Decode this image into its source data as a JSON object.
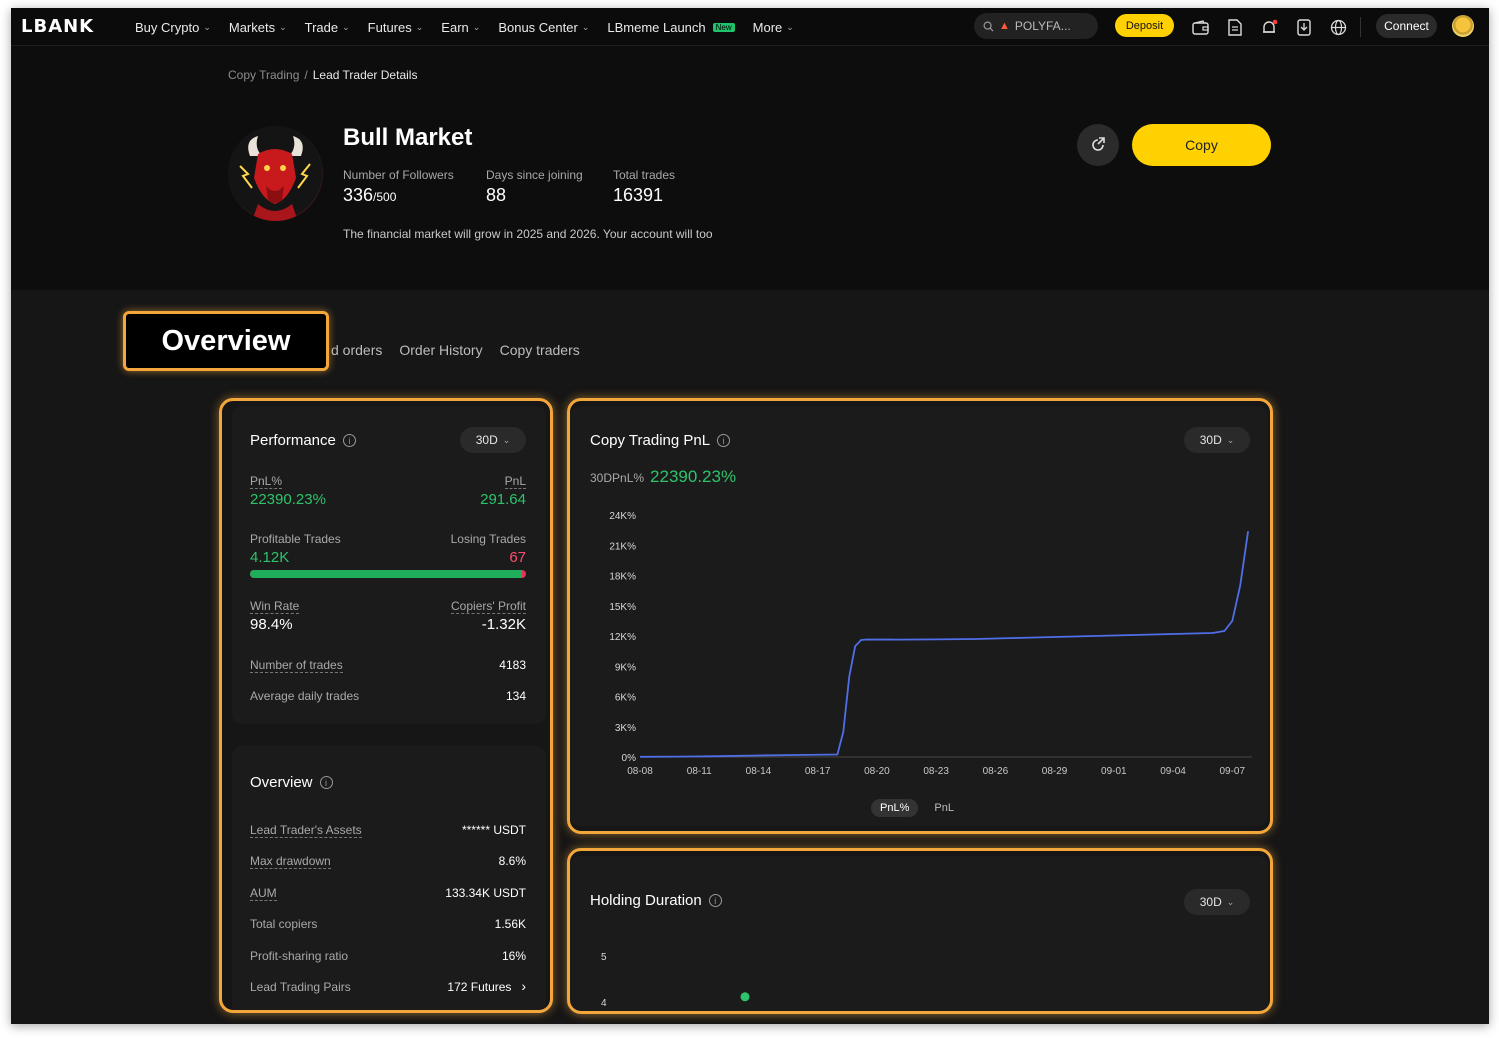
{
  "nav": {
    "logo": "LBANK",
    "items": [
      {
        "label": "Buy Crypto",
        "chevron": true,
        "badge": ""
      },
      {
        "label": "Markets",
        "chevron": true,
        "badge": ""
      },
      {
        "label": "Trade",
        "chevron": true,
        "badge": ""
      },
      {
        "label": "Futures",
        "chevron": true,
        "badge": ""
      },
      {
        "label": "Earn",
        "chevron": true,
        "badge": ""
      },
      {
        "label": "Bonus Center",
        "chevron": true,
        "badge": ""
      },
      {
        "label": "LBmeme Launch",
        "chevron": false,
        "badge": "New"
      },
      {
        "label": "More",
        "chevron": true,
        "badge": ""
      }
    ],
    "search_text": "POLYFA...",
    "deposit_label": "Deposit",
    "connect_label": "Connect",
    "icons": [
      "wallet-icon",
      "document-icon",
      "bell-icon",
      "download-icon",
      "globe-icon"
    ]
  },
  "breadcrumb": {
    "parent": "Copy Trading",
    "separator": "/",
    "current": "Lead Trader Details"
  },
  "trader": {
    "name": "Bull Market",
    "followers_label": "Number of Followers",
    "followers": "336",
    "followers_max": "/500",
    "days_label": "Days since joining",
    "days": "88",
    "trades_label": "Total trades",
    "trades": "16391",
    "bio": "The financial market will grow in 2025 and 2026. Your account will too"
  },
  "actions": {
    "copy_label": "Copy"
  },
  "tabs": {
    "partial_tab": "d orders",
    "order_history": "Order History",
    "copy_traders": "Copy traders"
  },
  "callout": {
    "label": "Overview"
  },
  "performance": {
    "title": "Performance",
    "period": "30D",
    "pnl_pct_label": "PnL%",
    "pnl_pct": "22390.23%",
    "pnl_label": "PnL",
    "pnl": "291.64",
    "profitable_label": "Profitable Trades",
    "profitable": "4.12K",
    "losing_label": "Losing Trades",
    "losing": "67",
    "win_ratio": 0.984,
    "win_rate_label": "Win Rate",
    "win_rate": "98.4%",
    "copiers_profit_label": "Copiers' Profit",
    "copiers_profit": "-1.32K",
    "num_trades_label": "Number of trades",
    "num_trades": "4183",
    "avg_daily_label": "Average daily trades",
    "avg_daily": "134"
  },
  "overview": {
    "title": "Overview",
    "rows": [
      {
        "label": "Lead Trader's Assets",
        "value": "****** USDT",
        "dotted": true
      },
      {
        "label": "Max drawdown",
        "value": "8.6%",
        "dotted": true
      },
      {
        "label": "AUM",
        "value": "133.34K USDT",
        "dotted": true
      },
      {
        "label": "Total copiers",
        "value": "1.56K",
        "dotted": false
      },
      {
        "label": "Profit-sharing ratio",
        "value": "16%",
        "dotted": false
      },
      {
        "label": "Lead Trading Pairs",
        "value": "172 Futures",
        "dotted": false
      }
    ]
  },
  "pnl_chart": {
    "title": "Copy Trading PnL",
    "period": "30D",
    "summary_label": "30DPnL%",
    "summary_value": "22390.23%",
    "toggle_active": "PnL%",
    "toggle_inactive": "PnL",
    "line_color": "#4f6fe8"
  },
  "chart_data": [
    {
      "type": "line",
      "title": "Copy Trading PnL",
      "xlabel": "",
      "ylabel": "",
      "x_tick_labels": [
        "08-08",
        "08-11",
        "08-14",
        "08-17",
        "08-20",
        "08-23",
        "08-26",
        "08-29",
        "09-01",
        "09-04",
        "09-07"
      ],
      "y_tick_labels": [
        "0%",
        "3K%",
        "6K%",
        "9K%",
        "12K%",
        "15K%",
        "18K%",
        "21K%",
        "24K%"
      ],
      "ylim": [
        0,
        24000
      ],
      "xlim": [
        0,
        31
      ],
      "grid": false,
      "series": [
        {
          "x": [
            0,
            2,
            4,
            6,
            8,
            10,
            10.3,
            10.6,
            10.9,
            11.2,
            11.5,
            13,
            15,
            17,
            19,
            21,
            23,
            25,
            27,
            28,
            29,
            29.6,
            30,
            30.4,
            30.8
          ],
          "y": [
            20,
            40,
            80,
            150,
            200,
            250,
            2500,
            8000,
            11000,
            11600,
            11650,
            11640,
            11660,
            11700,
            11800,
            11900,
            12000,
            12100,
            12200,
            12250,
            12300,
            12500,
            13500,
            17000,
            22390
          ]
        }
      ]
    },
    {
      "type": "scatter",
      "title": "Holding Duration",
      "y_tick_labels": [
        "5",
        "4"
      ],
      "series": [
        {
          "x": [
            0.3
          ],
          "y": [
            4.2
          ]
        }
      ]
    }
  ],
  "holding": {
    "title": "Holding Duration",
    "period": "30D",
    "point_color": "#2ec36b"
  },
  "colors": {
    "accent": "#ffd100",
    "positive": "#2ec36b",
    "negative": "#ff4c6b",
    "highlight": "#f3a73b"
  }
}
